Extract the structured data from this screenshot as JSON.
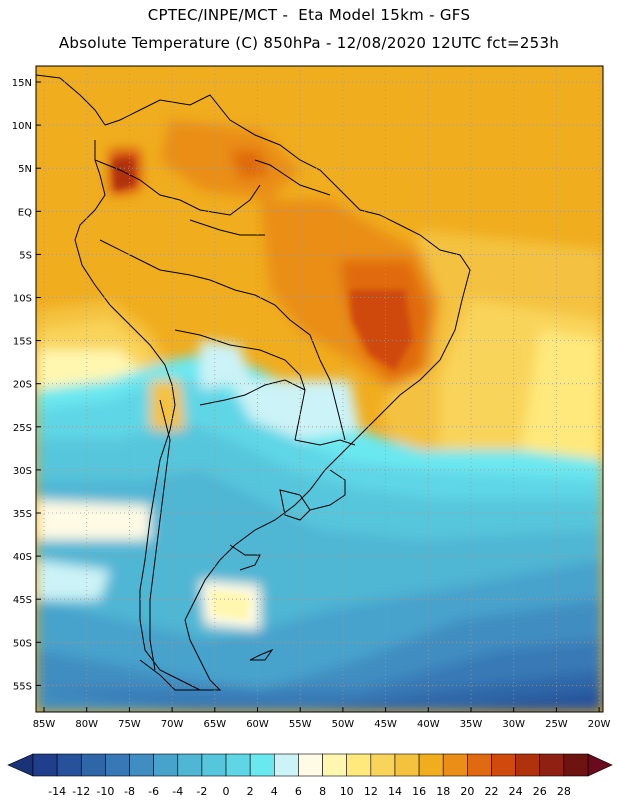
{
  "header": {
    "line1": "CPTEC/INPE/MCT -  Eta Model 15km - GFS",
    "line2": "Absolute Temperature (C) 850hPa - 12/08/2020 12UTC fct=253h"
  },
  "map": {
    "lat_ticks": [
      "15N",
      "10N",
      "5N",
      "EQ",
      "5S",
      "10S",
      "15S",
      "20S",
      "25S",
      "30S",
      "35S",
      "40S",
      "45S",
      "50S",
      "55S"
    ],
    "lon_ticks": [
      "85W",
      "80W",
      "75W",
      "70W",
      "65W",
      "60W",
      "55W",
      "50W",
      "45W",
      "40W",
      "35W",
      "30W",
      "25W",
      "20W"
    ]
  },
  "colorbar": {
    "labels": [
      "-14",
      "-12",
      "-10",
      "-8",
      "-6",
      "-4",
      "-2",
      "0",
      "2",
      "4",
      "6",
      "8",
      "10",
      "12",
      "14",
      "16",
      "18",
      "20",
      "22",
      "24",
      "26",
      "28"
    ],
    "colors": [
      "#1f3e8c",
      "#27529b",
      "#2f66a8",
      "#3779b6",
      "#3f8dc1",
      "#47a2cc",
      "#4fb6d4",
      "#56c6dc",
      "#5fd6e6",
      "#6ae8f0",
      "#ccf3f7",
      "#fffbe4",
      "#fff7b0",
      "#ffe97c",
      "#f9d45a",
      "#f4c23f",
      "#f0ad1e",
      "#ea8e18",
      "#e06a10",
      "#cf4a0c",
      "#b0320c",
      "#8e2111",
      "#6e1410"
    ],
    "low_arrow_color": "#1a3378",
    "high_arrow_color": "#6b0a1d"
  }
}
